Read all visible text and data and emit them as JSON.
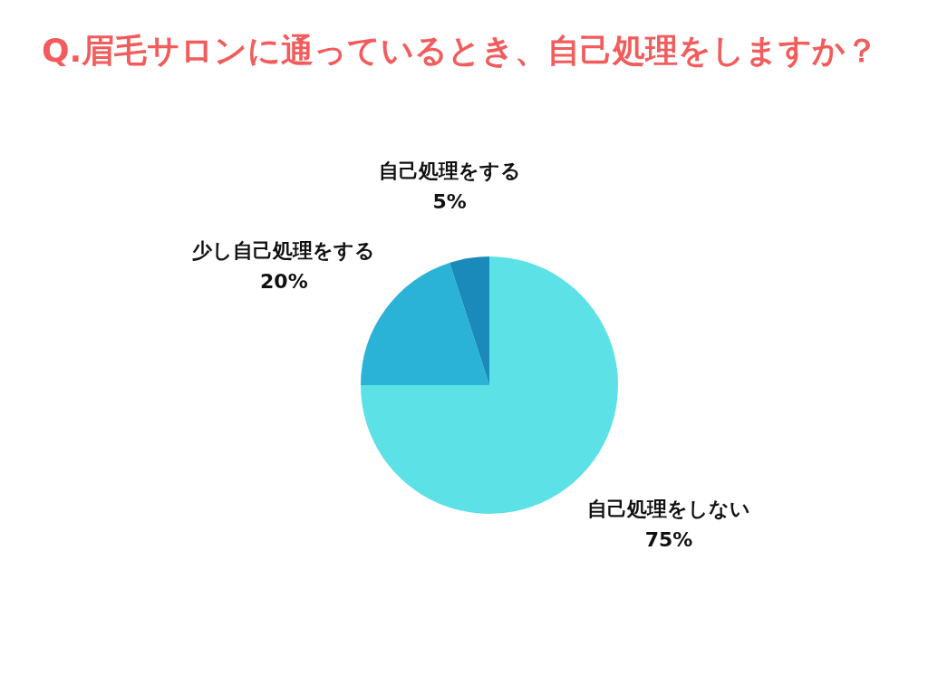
{
  "chart_data": {
    "type": "pie",
    "title": "Q.眉毛サロンに通っているとき、自己処理をしますか？",
    "categories": [
      "自己処理をしない",
      "少し自己処理をする",
      "自己処理をする"
    ],
    "values": [
      75,
      20,
      5
    ],
    "colors": [
      "#5ce1e6",
      "#2ab3d6",
      "#1a8abb"
    ],
    "value_labels": [
      "75%",
      "20%",
      "5%"
    ],
    "legend": false
  }
}
